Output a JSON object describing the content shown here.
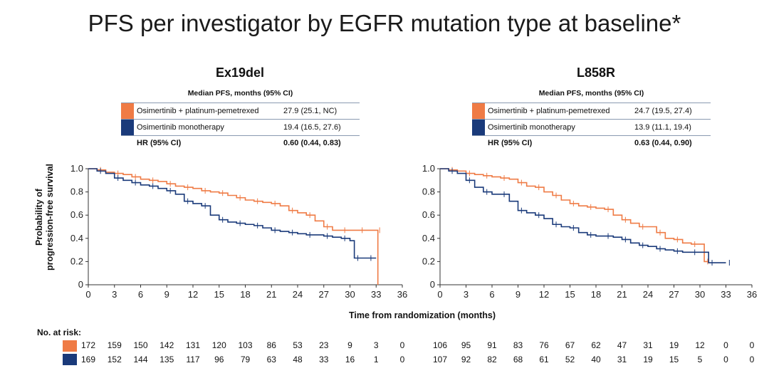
{
  "title": "PFS per investigator by EGFR mutation type at baseline*",
  "colors": {
    "combo": "#ef7b45",
    "mono": "#1a3a7a",
    "axis": "#333333"
  },
  "table_header": "Median PFS, months (95% CI)",
  "xlabel": "Time from randomization (months)",
  "ylabel_line1": "Probability of",
  "ylabel_line2": "progression-free survival",
  "risk_title": "No. at risk:",
  "chart_data": [
    {
      "type": "line",
      "panel_title": "Ex19del",
      "xlim": [
        0,
        36
      ],
      "ylim": [
        0,
        1.0
      ],
      "xticks": [
        0,
        3,
        6,
        9,
        12,
        15,
        18,
        21,
        24,
        27,
        30,
        33,
        36
      ],
      "yticks": [
        0,
        0.2,
        0.4,
        0.6,
        0.8,
        1.0
      ],
      "ytick_labels": [
        "0",
        "0.2",
        "0.4",
        "0.6",
        "0.8",
        "1.0"
      ],
      "legend": [
        {
          "name": "Osimertinib + platinum-pemetrexed",
          "value": "27.9 (25.1, NC)"
        },
        {
          "name": "Osimertinib monotherapy",
          "value": "19.4 (16.5, 27.6)"
        }
      ],
      "hr_label": "HR (95% CI)",
      "hr_value": "0.60 (0.44, 0.83)",
      "series": [
        {
          "name": "Osimertinib + platinum-pemetrexed",
          "x": [
            0,
            1,
            2,
            3,
            4,
            5,
            6,
            7,
            8,
            9,
            10,
            11,
            12,
            13,
            14,
            15,
            16,
            17,
            18,
            19,
            20,
            21,
            22,
            23,
            24,
            25,
            26,
            27,
            28,
            29,
            30,
            31,
            32,
            33,
            33.2
          ],
          "y": [
            1.0,
            0.99,
            0.97,
            0.96,
            0.95,
            0.93,
            0.91,
            0.9,
            0.89,
            0.87,
            0.85,
            0.84,
            0.83,
            0.81,
            0.8,
            0.79,
            0.77,
            0.75,
            0.73,
            0.72,
            0.71,
            0.7,
            0.68,
            0.64,
            0.62,
            0.6,
            0.55,
            0.5,
            0.47,
            0.47,
            0.47,
            0.47,
            0.47,
            0.47,
            0.0
          ]
        },
        {
          "name": "Osimertinib monotherapy",
          "x": [
            0,
            1,
            2,
            3,
            4,
            5,
            6,
            7,
            8,
            9,
            10,
            11,
            12,
            13,
            14,
            15,
            16,
            17,
            18,
            19,
            20,
            21,
            22,
            23,
            24,
            25,
            26,
            27,
            28,
            29,
            30,
            30.5,
            31,
            32,
            33
          ],
          "y": [
            1.0,
            0.98,
            0.96,
            0.92,
            0.9,
            0.88,
            0.86,
            0.85,
            0.83,
            0.81,
            0.78,
            0.72,
            0.7,
            0.68,
            0.6,
            0.56,
            0.54,
            0.53,
            0.52,
            0.51,
            0.49,
            0.47,
            0.46,
            0.45,
            0.44,
            0.43,
            0.43,
            0.42,
            0.41,
            0.4,
            0.38,
            0.23,
            0.23,
            0.23,
            0.23
          ]
        }
      ],
      "risk": [
        [
          172,
          159,
          150,
          142,
          131,
          120,
          103,
          86,
          53,
          23,
          9,
          3,
          0
        ],
        [
          169,
          152,
          144,
          135,
          117,
          96,
          79,
          63,
          48,
          33,
          16,
          1,
          0
        ]
      ]
    },
    {
      "type": "line",
      "panel_title": "L858R",
      "xlim": [
        0,
        36
      ],
      "ylim": [
        0,
        1.0
      ],
      "xticks": [
        0,
        3,
        6,
        9,
        12,
        15,
        18,
        21,
        24,
        27,
        30,
        33,
        36
      ],
      "yticks": [
        0,
        0.2,
        0.4,
        0.6,
        0.8,
        1.0
      ],
      "ytick_labels": [
        "0",
        "0.2",
        "0.4",
        "0.6",
        "0.8",
        "1.0"
      ],
      "legend": [
        {
          "name": "Osimertinib + platinum-pemetrexed",
          "value": "24.7 (19.5, 27.4)"
        },
        {
          "name": "Osimertinib monotherapy",
          "value": "13.9 (11.1, 19.4)"
        }
      ],
      "hr_label": "HR (95% CI)",
      "hr_value": "0.63 (0.44, 0.90)",
      "series": [
        {
          "name": "Osimertinib + platinum-pemetrexed",
          "x": [
            0,
            1,
            2,
            3,
            4,
            5,
            6,
            7,
            8,
            9,
            10,
            11,
            12,
            13,
            14,
            15,
            16,
            17,
            18,
            19,
            20,
            21,
            22,
            23,
            24,
            25,
            26,
            27,
            28,
            29,
            30,
            30.5,
            31
          ],
          "y": [
            1.0,
            0.99,
            0.98,
            0.96,
            0.95,
            0.94,
            0.93,
            0.92,
            0.91,
            0.88,
            0.85,
            0.84,
            0.8,
            0.77,
            0.73,
            0.7,
            0.68,
            0.67,
            0.66,
            0.65,
            0.6,
            0.56,
            0.53,
            0.5,
            0.5,
            0.45,
            0.4,
            0.39,
            0.36,
            0.35,
            0.35,
            0.2,
            0.2
          ]
        },
        {
          "name": "Osimertinib monotherapy",
          "x": [
            0,
            1,
            2,
            3,
            4,
            5,
            6,
            7,
            8,
            9,
            10,
            11,
            12,
            13,
            14,
            15,
            16,
            17,
            18,
            19,
            20,
            21,
            22,
            23,
            24,
            25,
            26,
            27,
            28,
            29,
            30,
            31,
            32,
            33
          ],
          "y": [
            1.0,
            0.98,
            0.96,
            0.9,
            0.84,
            0.8,
            0.78,
            0.78,
            0.72,
            0.64,
            0.62,
            0.6,
            0.57,
            0.52,
            0.5,
            0.49,
            0.45,
            0.43,
            0.42,
            0.42,
            0.41,
            0.39,
            0.36,
            0.34,
            0.33,
            0.31,
            0.3,
            0.29,
            0.28,
            0.28,
            0.28,
            0.19,
            0.19,
            0.19
          ]
        }
      ],
      "risk": [
        [
          106,
          95,
          91,
          83,
          76,
          67,
          62,
          47,
          31,
          19,
          12,
          0,
          0
        ],
        [
          107,
          92,
          82,
          68,
          61,
          52,
          40,
          31,
          19,
          15,
          5,
          0,
          0
        ]
      ]
    }
  ]
}
